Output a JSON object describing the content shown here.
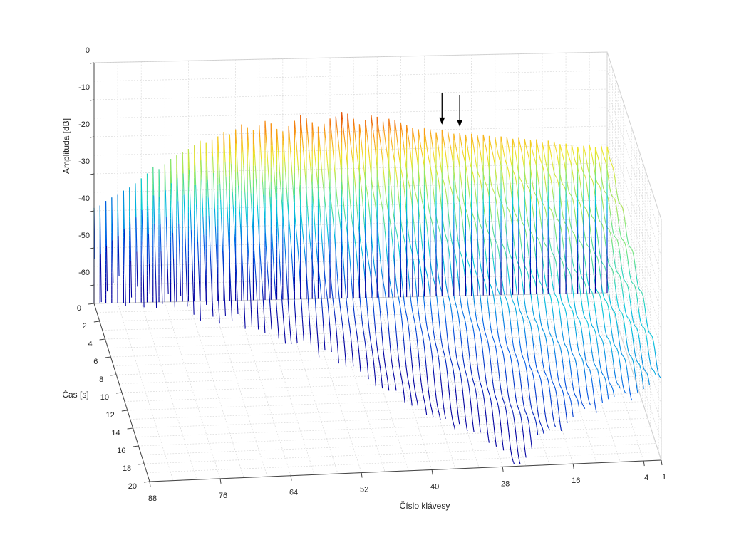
{
  "chart_data": {
    "type": "waterfall-3d",
    "xlabel": "Číslo klávesy",
    "ylabel": "Čas [s]",
    "zlabel": "Amplituda [dB]",
    "x_ticks": [
      "88",
      "76",
      "64",
      "52",
      "40",
      "28",
      "16",
      "4",
      "1"
    ],
    "y_ticks": [
      "0",
      "2",
      "4",
      "6",
      "8",
      "10",
      "12",
      "14",
      "16",
      "18",
      "20"
    ],
    "z_ticks": [
      "0",
      "-10",
      "-20",
      "-30",
      "-40",
      "-50",
      "-60"
    ],
    "xlim": [
      1,
      88
    ],
    "ylim": [
      0,
      20
    ],
    "zlim": [
      -65,
      0
    ],
    "colormap": "parula/jet (blue low, red high)",
    "grid": true,
    "annotations": [
      {
        "type": "arrow",
        "key": 29
      },
      {
        "type": "arrow",
        "key": 26
      }
    ],
    "series": {
      "keys_first": 1,
      "keys_last": 88,
      "peak_db": [
        -25.5,
        -25.3,
        -25.6,
        -25.1,
        -25.2,
        -25.4,
        -24.8,
        -24.5,
        -24.6,
        -23.9,
        -23.6,
        -24.1,
        -23.2,
        -23.4,
        -23.0,
        -22.7,
        -22.9,
        -22.5,
        -22.2,
        -22.4,
        -22.0,
        -21.6,
        -21.8,
        -21.3,
        -21.5,
        -20.9,
        -21.2,
        -20.6,
        -20.2,
        -20.7,
        -19.9,
        -19.6,
        -19.8,
        -19.3,
        -18.6,
        -17.9,
        -17.2,
        -16.8,
        -17.5,
        -16.2,
        -15.8,
        -17.0,
        -18.1,
        -16.6,
        -15.2,
        -14.7,
        -15.9,
        -16.4,
        -17.8,
        -18.5,
        -17.3,
        -16.1,
        -15.4,
        -16.8,
        -18.2,
        -19.6,
        -18.9,
        -17.4,
        -16.7,
        -17.9,
        -19.1,
        -18.3,
        -17.5,
        -18.8,
        -20.1,
        -19.4,
        -20.6,
        -21.4,
        -22.3,
        -21.7,
        -22.9,
        -23.8,
        -24.6,
        -25.5,
        -26.4,
        -27.8,
        -29.1,
        -28.4,
        -30.2,
        -31.5,
        -32.8,
        -33.9,
        -34.7,
        -35.8,
        -36.5,
        -37.4,
        -38.6,
        -39.2
      ],
      "decay_db_per_s": [
        0.9,
        0.9,
        1.0,
        1.0,
        1.0,
        1.1,
        1.1,
        1.1,
        1.2,
        1.2,
        1.2,
        1.3,
        1.3,
        1.4,
        1.4,
        1.5,
        1.5,
        1.6,
        1.6,
        1.7,
        1.8,
        1.8,
        1.9,
        2.0,
        2.1,
        2.2,
        2.3,
        2.4,
        2.5,
        2.6,
        2.7,
        2.8,
        2.9,
        3.0,
        3.2,
        3.3,
        3.5,
        3.6,
        3.8,
        3.9,
        4.1,
        4.3,
        4.5,
        4.7,
        4.9,
        5.1,
        5.4,
        5.6,
        5.9,
        6.2,
        6.5,
        6.8,
        7.1,
        7.5,
        7.9,
        8.3,
        8.7,
        9.2,
        9.7,
        10.2,
        10.8,
        11.4,
        12.0,
        12.7,
        13.4,
        14.2,
        15.0,
        15.9,
        16.8,
        17.8,
        18.9,
        20.0,
        21.2,
        22.5,
        23.9,
        25.4,
        27.0,
        28.7,
        30.5,
        32.4,
        34.5,
        36.7,
        39.0,
        41.5,
        44.1,
        46.9,
        49.8,
        52.9
      ]
    }
  }
}
